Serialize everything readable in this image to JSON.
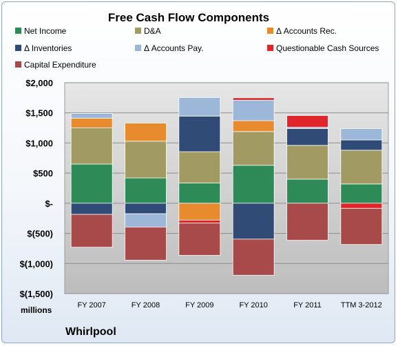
{
  "chart_data": {
    "type": "bar",
    "stacked": true,
    "title": "Free Cash Flow Components",
    "unit_label": "millions",
    "brand": "Whirlpool",
    "categories": [
      "FY 2007",
      "FY 2008",
      "FY 2009",
      "FY 2010",
      "FY 2011",
      "TTM 3-2012"
    ],
    "ylim": [
      -1500,
      2000
    ],
    "yticks": [
      2000,
      1500,
      1000,
      500,
      0,
      -500,
      -1000,
      -1500
    ],
    "ytick_labels": [
      "$2,000",
      "$1,500",
      "$1,000",
      "$500",
      "$-",
      "$(500)",
      "$(1,000)",
      "$(1,500)"
    ],
    "grid": true,
    "legend_position": "top",
    "series": [
      {
        "name": "Net Income",
        "color": "#2e8b57",
        "values": [
          650,
          420,
          335,
          630,
          400,
          320
        ]
      },
      {
        "name": "D&A",
        "color": "#a19a62",
        "values": [
          600,
          610,
          520,
          560,
          560,
          560
        ]
      },
      {
        "name": "Δ Accounts Rec.",
        "color": "#e88a2e",
        "values": [
          160,
          300,
          -280,
          180,
          0,
          0
        ]
      },
      {
        "name": "Δ Inventories",
        "color": "#2f4b76",
        "values": [
          -185,
          -175,
          590,
          -595,
          280,
          170
        ]
      },
      {
        "name": "Δ Accounts Pay.",
        "color": "#9db7d9",
        "values": [
          80,
          -220,
          310,
          340,
          20,
          190
        ]
      },
      {
        "name": "Questionable Cash Sources",
        "color": "#e0262a",
        "values": [
          0,
          0,
          -50,
          40,
          195,
          -85
        ]
      },
      {
        "name": "Capital Expenditure",
        "color": "#a94a4a",
        "values": [
          -545,
          -550,
          -535,
          -600,
          -615,
          -600
        ]
      }
    ]
  }
}
